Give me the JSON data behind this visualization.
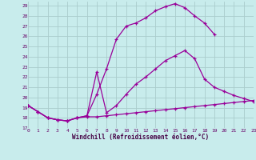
{
  "background_color": "#c8ecec",
  "grid_color": "#aacccc",
  "line_color": "#990099",
  "xlabel": "Windchill (Refroidissement éolien,°C)",
  "xlim": [
    0,
    23
  ],
  "ylim": [
    17,
    29.4
  ],
  "xticks": [
    0,
    1,
    2,
    3,
    4,
    5,
    6,
    7,
    8,
    9,
    10,
    11,
    12,
    13,
    14,
    15,
    16,
    17,
    18,
    19,
    20,
    21,
    22,
    23
  ],
  "yticks": [
    17,
    18,
    19,
    20,
    21,
    22,
    23,
    24,
    25,
    26,
    27,
    28,
    29
  ],
  "curve1_x": [
    0,
    1,
    2,
    3,
    4,
    5,
    6,
    7,
    8,
    9,
    10,
    11,
    12,
    13,
    14,
    15,
    16,
    17,
    18,
    19,
    20,
    21,
    22,
    23
  ],
  "curve1_y": [
    19.2,
    18.6,
    18.0,
    17.8,
    17.7,
    18.0,
    18.1,
    18.1,
    18.2,
    18.3,
    18.4,
    18.5,
    18.6,
    18.7,
    18.8,
    18.9,
    19.0,
    19.1,
    19.2,
    19.3,
    19.4,
    19.5,
    19.6,
    19.7
  ],
  "curve2_x": [
    0,
    1,
    2,
    3,
    4,
    5,
    6,
    7,
    8,
    9,
    10,
    11,
    12,
    13,
    14,
    15,
    16,
    17,
    18,
    19
  ],
  "curve2_y": [
    19.2,
    18.6,
    18.0,
    17.8,
    17.7,
    18.0,
    18.2,
    20.3,
    22.8,
    25.7,
    27.0,
    27.3,
    27.8,
    28.5,
    28.9,
    29.2,
    28.8,
    28.0,
    27.3,
    26.2
  ],
  "curve3_x": [
    0,
    1,
    2,
    3,
    4,
    5,
    6,
    7,
    8,
    9,
    10,
    11,
    12,
    13,
    14,
    15,
    16,
    17,
    18,
    19,
    20,
    21,
    22,
    23
  ],
  "curve3_y": [
    19.2,
    18.6,
    18.0,
    17.8,
    17.7,
    18.0,
    18.2,
    22.5,
    18.5,
    19.2,
    20.3,
    21.3,
    22.0,
    22.8,
    23.6,
    24.1,
    24.6,
    23.8,
    21.8,
    21.0,
    20.6,
    20.2,
    19.9,
    19.6
  ]
}
